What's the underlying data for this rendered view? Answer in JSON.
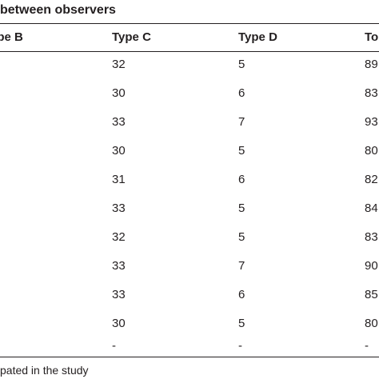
{
  "title": "between observers",
  "columns": [
    "ype B",
    "Type C",
    "Type D",
    "To"
  ],
  "rows": [
    [
      "32",
      "5",
      "89"
    ],
    [
      "30",
      "6",
      "83"
    ],
    [
      "33",
      "7",
      "93"
    ],
    [
      "30",
      "5",
      "80"
    ],
    [
      "31",
      "6",
      "82"
    ],
    [
      "33",
      "5",
      "84"
    ],
    [
      "32",
      "5",
      "83"
    ],
    [
      "33",
      "7",
      "90"
    ],
    [
      "33",
      "6",
      "85"
    ],
    [
      "30",
      "5",
      "80"
    ],
    [
      "-",
      "-",
      "-"
    ]
  ],
  "footnote": "pated in the study"
}
